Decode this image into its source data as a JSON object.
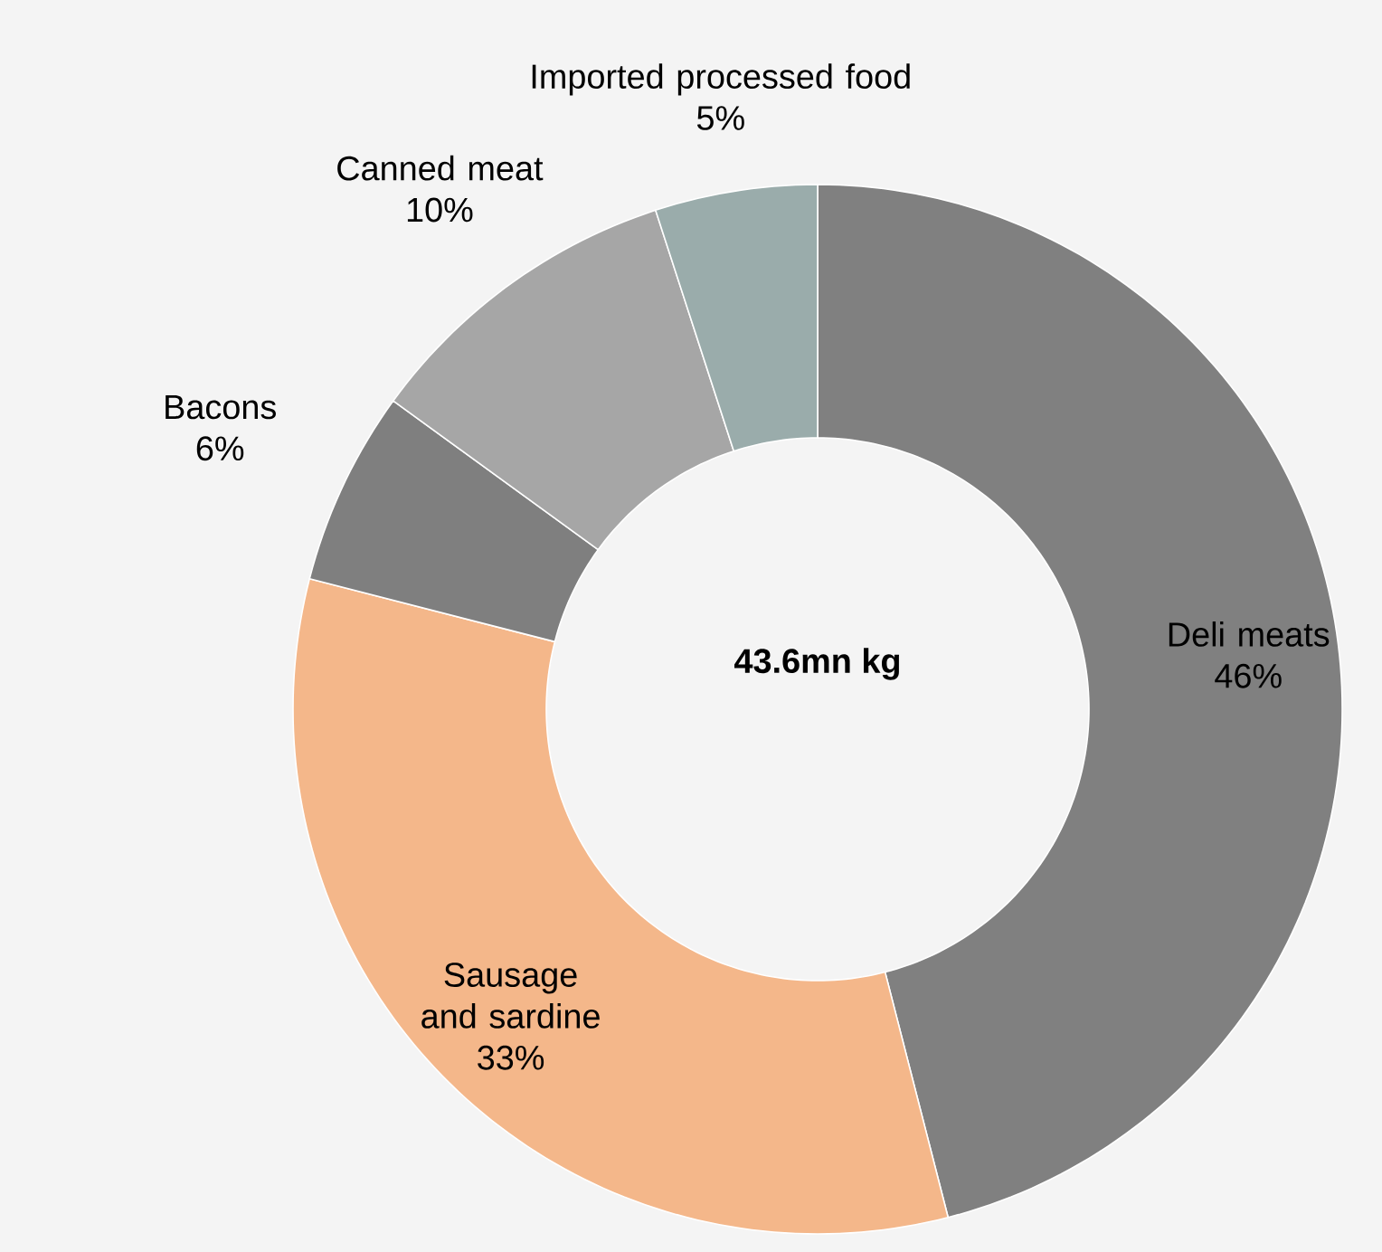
{
  "chart_data": {
    "type": "donut",
    "categories": [
      "Deli meats",
      "Sausage and sardine",
      "Bacons",
      "Canned meat",
      "Imported processed food"
    ],
    "values": [
      46,
      33,
      6,
      10,
      5
    ],
    "value_labels": [
      "46%",
      "33%",
      "6%",
      "10%",
      "5%"
    ],
    "colors": [
      "#808080",
      "#f4b78a",
      "#7f7f7f",
      "#a6a6a6",
      "#9aacab"
    ],
    "annotations": [
      "43.6mn kg"
    ]
  }
}
